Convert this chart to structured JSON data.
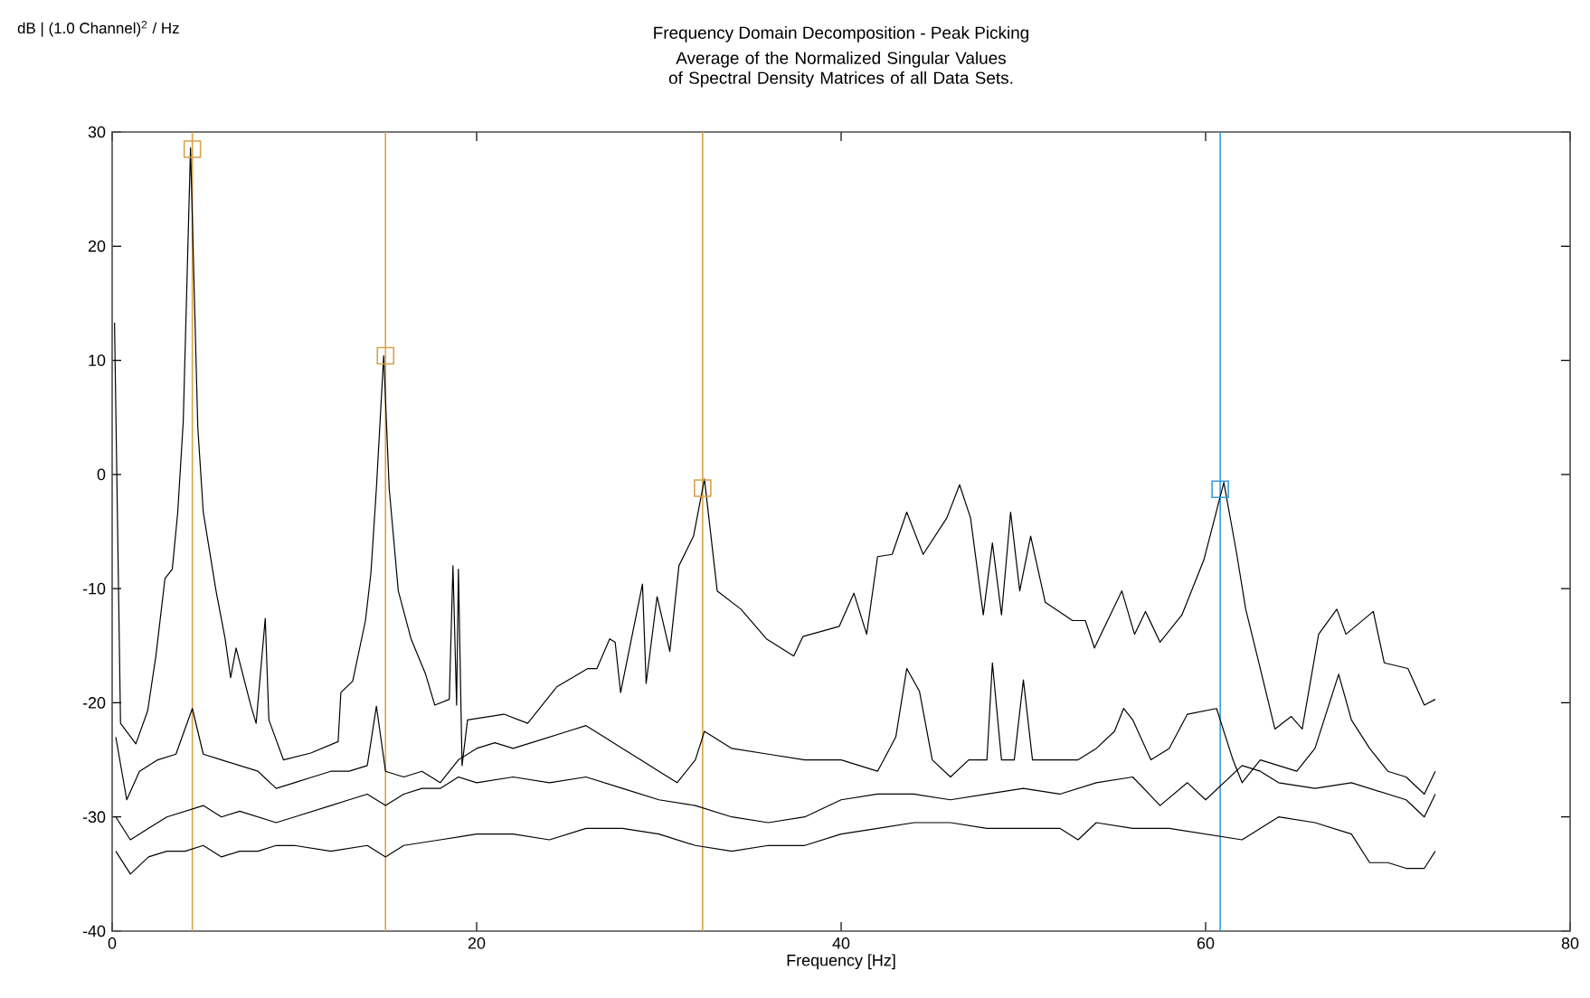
{
  "chart_data": {
    "type": "line",
    "title": "Frequency Domain Decomposition - Peak Picking",
    "subtitle": "Average of the Normalized Singular Values of Spectral Density Matrices of all Data Sets.",
    "xlabel": "Frequency [Hz]",
    "annotations": [
      "dB | (1.0 Channel)$^{2}$ / Hz"
    ],
    "xlim": [
      0,
      80
    ],
    "xticks": [
      0,
      20,
      40,
      60,
      80
    ],
    "ylim": [
      -40,
      30
    ],
    "yticks": [
      -40,
      -30,
      -20,
      -10,
      0,
      10,
      20,
      30
    ],
    "grid": false,
    "ref_lines": [
      {
        "axis": "x",
        "value": 4.4,
        "color": "#d9a24a"
      },
      {
        "axis": "x",
        "value": 15.0,
        "color": "#d9a24a"
      },
      {
        "axis": "x",
        "value": 32.4,
        "color": "#d9a24a"
      },
      {
        "axis": "x",
        "value": 60.8,
        "color": "#3a9ad9"
      }
    ],
    "series": [
      {
        "color": "#000000",
        "x": [
          0.13,
          0.46,
          1.3,
          1.95,
          2.4,
          2.9,
          3.3,
          3.6,
          3.9,
          4.3,
          4.7,
          5.0,
          5.7,
          6.2,
          6.5,
          6.8,
          7.6,
          7.9,
          8.4,
          8.6,
          9.4,
          10.9,
          12.4,
          12.55,
          13.2,
          13.9,
          14.2,
          14.5,
          14.9,
          15.2,
          15.7,
          16.4,
          17.2,
          17.7,
          18.5,
          18.7,
          18.9,
          19.0,
          19.2,
          19.5,
          21.5,
          22.8,
          24.4,
          26.1,
          26.6,
          27.3,
          27.6,
          27.9,
          29.1,
          29.3,
          29.9,
          30.6,
          31.1,
          31.9,
          32.5,
          33.2,
          34.5,
          35.9,
          37.4,
          37.9,
          39.9,
          40.7,
          41.4,
          42.0,
          42.8,
          43.6,
          44.5,
          45.8,
          46.5,
          47.1,
          47.8,
          48.3,
          48.8,
          49.3,
          49.8,
          50.4,
          51.2,
          52.7,
          53.4,
          53.9,
          55.4,
          56.1,
          56.7,
          57.5,
          58.7,
          59.9,
          60.5,
          61.0,
          61.7,
          62.2,
          63.0,
          63.8,
          64.7,
          65.3,
          66.2,
          67.2,
          67.7,
          69.2,
          69.8,
          71.1,
          72.0,
          72.6
        ],
        "values": [
          13.3,
          -21.8,
          -23.6,
          -20.7,
          -15.9,
          -9.1,
          -8.3,
          -3.3,
          4.6,
          28.6,
          4.1,
          -3.3,
          -10.2,
          -14.4,
          -17.8,
          -15.2,
          -20.2,
          -21.8,
          -12.6,
          -21.5,
          -25.0,
          -24.4,
          -23.4,
          -19.1,
          -18.1,
          -12.8,
          -8.6,
          -1.2,
          10.4,
          -1.2,
          -10.2,
          -14.4,
          -17.5,
          -20.2,
          -19.7,
          -8.0,
          -20.2,
          -8.3,
          -25.5,
          -21.5,
          -21.0,
          -21.8,
          -18.6,
          -17.0,
          -17.0,
          -14.4,
          -14.7,
          -19.1,
          -9.6,
          -18.3,
          -10.7,
          -15.5,
          -8.0,
          -5.4,
          -0.4,
          -10.2,
          -11.8,
          -14.4,
          -15.9,
          -14.2,
          -13.3,
          -10.4,
          -14.0,
          -7.2,
          -7.0,
          -3.3,
          -7.0,
          -3.8,
          -0.9,
          -3.8,
          -12.3,
          -6.0,
          -12.3,
          -3.3,
          -10.2,
          -5.4,
          -11.2,
          -12.8,
          -12.8,
          -15.2,
          -10.2,
          -14.0,
          -12.0,
          -14.7,
          -12.3,
          -7.5,
          -3.8,
          -0.7,
          -6.9,
          -11.8,
          -17.0,
          -22.3,
          -21.2,
          -22.3,
          -14.0,
          -11.8,
          -14.0,
          -12.0,
          -16.5,
          -17.0,
          -20.2,
          -19.7
        ]
      },
      {
        "color": "#000000",
        "x": [
          0.2,
          0.8,
          1.5,
          2.5,
          3.5,
          4.4,
          5,
          6,
          7,
          8,
          9,
          10,
          11,
          12,
          13,
          14,
          14.5,
          15,
          16,
          17,
          18,
          19,
          20,
          21,
          22,
          23,
          24,
          25,
          26,
          27,
          28,
          29,
          30,
          31,
          32,
          32.5,
          34,
          36,
          38,
          40,
          42,
          43,
          43.6,
          44.3,
          45,
          46,
          47,
          48,
          48.3,
          48.8,
          49.5,
          50,
          50.5,
          52,
          53,
          54,
          55,
          55.5,
          56,
          57,
          58,
          59,
          60.6,
          61.5,
          62,
          63,
          64,
          65,
          66,
          67.3,
          68,
          69,
          70,
          71,
          72,
          72.6
        ],
        "values": [
          -23,
          -28.5,
          -26,
          -25,
          -24.5,
          -20.5,
          -24.5,
          -25,
          -25.5,
          -26,
          -27.5,
          -27,
          -26.5,
          -26,
          -26,
          -25.5,
          -20.3,
          -26,
          -26.5,
          -26,
          -27,
          -25,
          -24,
          -23.5,
          -24,
          -23.5,
          -23,
          -22.5,
          -22,
          -23,
          -24,
          -25,
          -26,
          -27,
          -25,
          -22.5,
          -24,
          -24.5,
          -25,
          -25,
          -26,
          -23,
          -17,
          -19,
          -25,
          -26.5,
          -25,
          -25,
          -16.5,
          -25,
          -25,
          -18,
          -25,
          -25,
          -25,
          -24,
          -22.5,
          -20.5,
          -21.5,
          -25,
          -24,
          -21,
          -20.5,
          -25,
          -27,
          -25,
          -25.5,
          -26,
          -24,
          -17.5,
          -21.5,
          -24,
          -26,
          -26.5,
          -28,
          -26
        ]
      },
      {
        "color": "#000000",
        "x": [
          0.2,
          1,
          2,
          3,
          4,
          5,
          6,
          7,
          8,
          9,
          10,
          11,
          12,
          13,
          14,
          15,
          16,
          17,
          18,
          19,
          20,
          22,
          24,
          26,
          28,
          30,
          32,
          34,
          36,
          38,
          40,
          42,
          44,
          46,
          48,
          50,
          52,
          54,
          56,
          57.5,
          59,
          60,
          62,
          63,
          64,
          66,
          68,
          70,
          71,
          72,
          72.6
        ],
        "values": [
          -30,
          -32,
          -31,
          -30,
          -29.5,
          -29,
          -30,
          -29.5,
          -30,
          -30.5,
          -30,
          -29.5,
          -29,
          -28.5,
          -28,
          -29,
          -28,
          -27.5,
          -27.5,
          -26.5,
          -27,
          -26.5,
          -27,
          -26.5,
          -27.5,
          -28.5,
          -29,
          -30,
          -30.5,
          -30,
          -28.5,
          -28,
          -28,
          -28.5,
          -28,
          -27.5,
          -28,
          -27,
          -26.5,
          -29,
          -27,
          -28.5,
          -25.5,
          -26,
          -27,
          -27.5,
          -27,
          -28,
          -28.5,
          -30,
          -28
        ]
      },
      {
        "color": "#000000",
        "x": [
          0.2,
          1,
          2,
          3,
          4,
          5,
          6,
          7,
          8,
          9,
          10,
          12,
          14,
          15,
          16,
          18,
          20,
          22,
          24,
          26,
          28,
          30,
          32,
          34,
          36,
          38,
          40,
          42,
          44,
          46,
          48,
          50,
          52,
          53,
          54,
          56,
          58,
          60,
          62,
          64,
          66,
          68,
          69,
          70,
          71,
          72,
          72.6
        ],
        "values": [
          -33,
          -35,
          -33.5,
          -33,
          -33,
          -32.5,
          -33.5,
          -33,
          -33,
          -32.5,
          -32.5,
          -33,
          -32.5,
          -33.5,
          -32.5,
          -32,
          -31.5,
          -31.5,
          -32,
          -31,
          -31,
          -31.5,
          -32.5,
          -33,
          -32.5,
          -32.5,
          -31.5,
          -31,
          -30.5,
          -30.5,
          -31,
          -31,
          -31,
          -32,
          -30.5,
          -31,
          -31,
          -31.5,
          -32,
          -30,
          -30.5,
          -31.5,
          -34,
          -34,
          -34.5,
          -34.5,
          -33
        ]
      },
      {
        "type": "scatter",
        "marker": "square",
        "x": [
          4.4,
          15.0,
          32.4,
          60.8
        ],
        "values": [
          28.5,
          10.4,
          -1.2,
          -1.3
        ],
        "colors": [
          "#d9a24a",
          "#d9a24a",
          "#d9a24a",
          "#3a9ad9"
        ]
      }
    ]
  }
}
